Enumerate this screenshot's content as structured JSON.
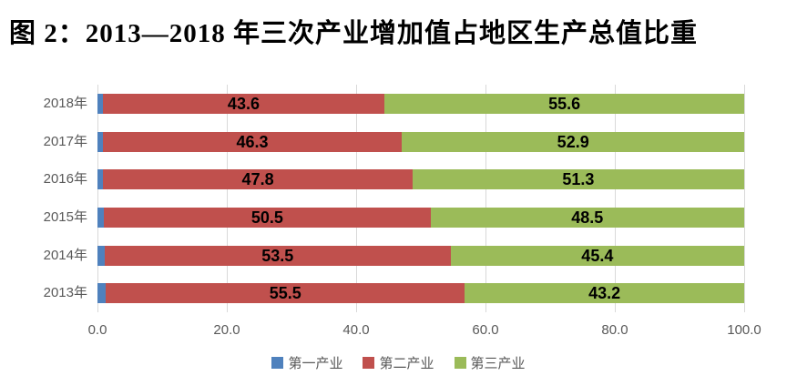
{
  "title": "图 2：2013—2018 年三次产业增加值占地区生产总值比重",
  "chart_data": {
    "type": "bar",
    "variant": "horizontal-stacked",
    "title": "图 2：2013—2018 年三次产业增加值占地区生产总值比重",
    "categories": [
      "2018年",
      "2017年",
      "2016年",
      "2015年",
      "2014年",
      "2013年"
    ],
    "series": [
      {
        "name": "第一产业",
        "color": "#4F81BD",
        "values": [
          0.8,
          0.8,
          0.9,
          1.0,
          1.1,
          1.3
        ]
      },
      {
        "name": "第二产业",
        "color": "#C0504D",
        "values": [
          43.6,
          46.3,
          47.8,
          50.5,
          53.5,
          55.5
        ]
      },
      {
        "name": "第三产业",
        "color": "#9BBB59",
        "values": [
          55.6,
          52.9,
          51.3,
          48.5,
          45.4,
          43.2
        ]
      }
    ],
    "xlabel": "",
    "ylabel": "",
    "xlim": [
      0,
      100
    ],
    "x_ticks": [
      "0.0",
      "20.0",
      "40.0",
      "60.0",
      "80.0",
      "100.0"
    ],
    "grid": true,
    "legend_position": "bottom",
    "colors": {
      "gridline": "#D9D9D9",
      "axis_text": "#595959",
      "data_label": "#000000",
      "background": "#FFFFFF"
    }
  }
}
